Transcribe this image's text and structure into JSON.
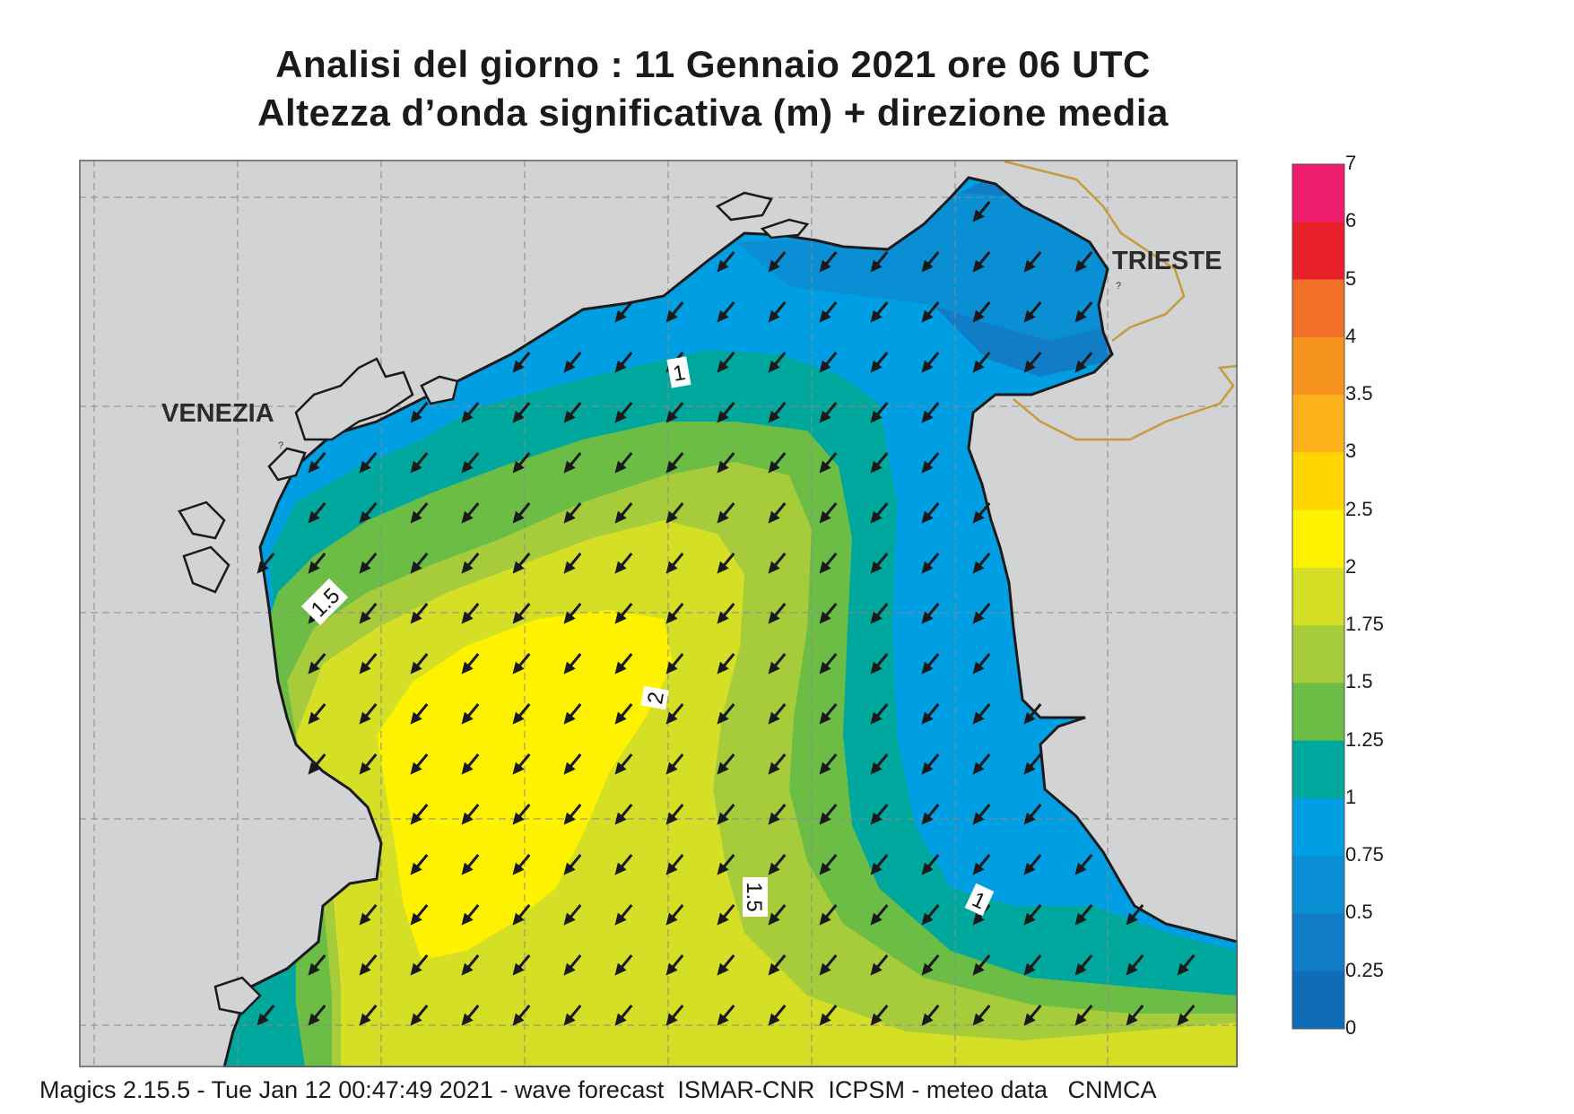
{
  "title_line1": "Analisi del giorno :  11  Gennaio  2021   ore 06 UTC",
  "title_line2": "Altezza d’onda significativa (m) + direzione media",
  "places": {
    "venezia": "VENEZIA",
    "trieste": "TRIESTE"
  },
  "contour_labels": [
    "1",
    "1.5",
    "2",
    "1.5",
    "1"
  ],
  "legend": {
    "labels": [
      "7",
      "6",
      "5",
      "4",
      "3.5",
      "3",
      "2.5",
      "2",
      "1.75",
      "1.5",
      "1.25",
      "1",
      "0.75",
      "0.5",
      "0.25",
      "0"
    ],
    "colors_top_to_bottom": [
      "#ee1d6c",
      "#e8202a",
      "#f0702a",
      "#f7941d",
      "#fbb21a",
      "#ffd500",
      "#fff200",
      "#d5df26",
      "#a6cc3b",
      "#6cbd45",
      "#00a79d",
      "#009fe3",
      "#0a8ed4",
      "#117dc7",
      "#0f6db8"
    ]
  },
  "colors": {
    "land": "#d1d3d4",
    "border": "#c89a3c",
    "coast": "#1a1a1a",
    "arrow": "#1a1a1a"
  },
  "wave_direction": "from north-east toward south-west",
  "footer": "Magics 2.15.5 - Tue Jan 12 00:47:49 2021 - wave forecast  ISMAR-CNR  ICPSM - meteo data   CNMCA"
}
